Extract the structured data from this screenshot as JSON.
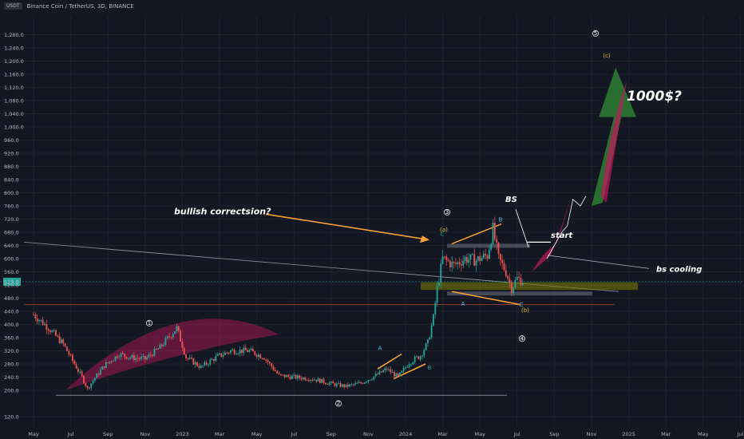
{
  "header": {
    "quote_currency": "USDT",
    "symbol_title": "Binance Coin / TetherUS, 3D, BINANCE"
  },
  "colors": {
    "background": "#131722",
    "up": "#26a69a",
    "down": "#ef5350",
    "grid": "#1e222d",
    "annotation": "#f7a133",
    "projection": "#c2185b",
    "arrow_green": "#2e7d32",
    "wave_label": "#e6c229"
  },
  "chart_data": {
    "type": "candlestick",
    "title": "Binance Coin / TetherUS, 3D, BINANCE",
    "ylim": [
      100,
      1330
    ],
    "x_ticks": [
      "May",
      "Jul",
      "Sep",
      "Nov",
      "2023",
      "Mar",
      "May",
      "Jul",
      "Sep",
      "Nov",
      "2024",
      "Mar",
      "May",
      "Jul",
      "Sep",
      "Nov",
      "2025",
      "Mar",
      "May",
      "Jul"
    ],
    "y_ticks": [
      120,
      200,
      240,
      280,
      320,
      360,
      400,
      440,
      480,
      520,
      560,
      600,
      640,
      680,
      720,
      760,
      800,
      840,
      880,
      920,
      960,
      1000,
      1040,
      1080,
      1120,
      1160,
      1200,
      1240,
      1280
    ],
    "price_anchors": [
      {
        "t": 0.0,
        "p": 430
      },
      {
        "t": 0.4,
        "p": 390
      },
      {
        "t": 0.8,
        "p": 340
      },
      {
        "t": 1.0,
        "p": 300
      },
      {
        "t": 1.3,
        "p": 240
      },
      {
        "t": 1.45,
        "p": 205
      },
      {
        "t": 1.6,
        "p": 230
      },
      {
        "t": 1.9,
        "p": 275
      },
      {
        "t": 2.3,
        "p": 310
      },
      {
        "t": 2.6,
        "p": 300
      },
      {
        "t": 3.0,
        "p": 295
      },
      {
        "t": 3.4,
        "p": 330
      },
      {
        "t": 3.85,
        "p": 390
      },
      {
        "t": 4.1,
        "p": 300
      },
      {
        "t": 4.5,
        "p": 270
      },
      {
        "t": 4.9,
        "p": 300
      },
      {
        "t": 5.3,
        "p": 320
      },
      {
        "t": 5.8,
        "p": 320
      },
      {
        "t": 6.2,
        "p": 300
      },
      {
        "t": 6.6,
        "p": 245
      },
      {
        "t": 7.0,
        "p": 240
      },
      {
        "t": 7.5,
        "p": 235
      },
      {
        "t": 8.0,
        "p": 220
      },
      {
        "t": 8.4,
        "p": 212
      },
      {
        "t": 8.8,
        "p": 222
      },
      {
        "t": 9.2,
        "p": 245
      },
      {
        "t": 9.5,
        "p": 265
      },
      {
        "t": 9.8,
        "p": 240
      },
      {
        "t": 10.1,
        "p": 285
      },
      {
        "t": 10.4,
        "p": 305
      },
      {
        "t": 10.6,
        "p": 345
      },
      {
        "t": 10.75,
        "p": 420
      },
      {
        "t": 10.85,
        "p": 510
      },
      {
        "t": 11.0,
        "p": 600
      },
      {
        "t": 11.3,
        "p": 580
      },
      {
        "t": 11.6,
        "p": 600
      },
      {
        "t": 11.9,
        "p": 595
      },
      {
        "t": 12.2,
        "p": 610
      },
      {
        "t": 12.35,
        "p": 690
      },
      {
        "t": 12.5,
        "p": 600
      },
      {
        "t": 12.7,
        "p": 560
      },
      {
        "t": 12.85,
        "p": 510
      },
      {
        "t": 13.0,
        "p": 540
      },
      {
        "t": 13.2,
        "p": 530
      }
    ],
    "last_price": "529.8",
    "annotations": {
      "bullish": "bullish correctsion?",
      "bs": "BS",
      "start": "start",
      "bs_cooling": "bs cooling",
      "target": "1000$?",
      "wave_a": "(a)",
      "wave_b": "(b)",
      "wave_c": "(c)",
      "wave_1": "1",
      "wave_2": "2",
      "wave_3": "3",
      "wave_4": "4",
      "wave_5": "5",
      "sub_a": "A",
      "sub_b": "B",
      "sub_c": "C",
      "sub_a2": "A",
      "sub_b2": "B",
      "sub_c2": "C"
    }
  }
}
